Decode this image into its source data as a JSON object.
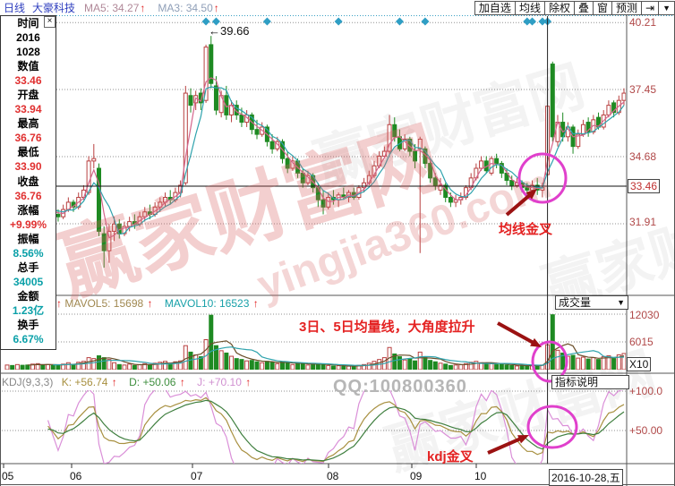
{
  "header": {
    "period_label": "日线",
    "stock_name": "大豪科技",
    "ma5_label": "MA5: 34.27",
    "ma3_label": "MA3: 34.50",
    "up_arrow": "↑",
    "buttons": [
      "加自选",
      "均线",
      "除权",
      "叠",
      "窗",
      "预测"
    ],
    "jump_icon": "⇥",
    "dropdown_icon": "▼"
  },
  "sidebar": {
    "close_icon": "×",
    "rows": [
      {
        "text": "时间",
        "cls": "sb-lab"
      },
      {
        "text": "2016",
        "cls": "sb-k"
      },
      {
        "text": "1028",
        "cls": "sb-k"
      },
      {
        "text": "数值",
        "cls": "sb-lab"
      },
      {
        "text": "33.46",
        "cls": "sb-r"
      },
      {
        "text": "开盘",
        "cls": "sb-lab"
      },
      {
        "text": "33.94",
        "cls": "sb-r"
      },
      {
        "text": "最高",
        "cls": "sb-lab"
      },
      {
        "text": "36.76",
        "cls": "sb-r"
      },
      {
        "text": "最低",
        "cls": "sb-lab"
      },
      {
        "text": "33.90",
        "cls": "sb-r"
      },
      {
        "text": "收盘",
        "cls": "sb-lab"
      },
      {
        "text": "36.76",
        "cls": "sb-r"
      },
      {
        "text": "涨幅",
        "cls": "sb-lab"
      },
      {
        "text": "+9.99%",
        "cls": "sb-r"
      },
      {
        "text": "振幅",
        "cls": "sb-lab"
      },
      {
        "text": "8.56%",
        "cls": "sb-c"
      },
      {
        "text": "总手",
        "cls": "sb-lab"
      },
      {
        "text": "34005",
        "cls": "sb-c"
      },
      {
        "text": "金额",
        "cls": "sb-lab"
      },
      {
        "text": "1.23亿",
        "cls": "sb-c"
      },
      {
        "text": "换手",
        "cls": "sb-lab"
      },
      {
        "text": "6.67%",
        "cls": "sb-c"
      }
    ]
  },
  "volume_header": {
    "lead_arrow": "↑",
    "mavol5": "MAVOL5: 15698",
    "mavol10": "MAVOL10: 16523"
  },
  "kdj_header": {
    "name": "KDJ(9,3,3)",
    "k": "K: +56.74",
    "d": "D: +50.06",
    "j": "J: +70.10"
  },
  "right_panel": {
    "volume_dropdown": "成交量",
    "dropdown_icon": "▼",
    "indicator_help": "指标说明",
    "unit": "X10",
    "date": "2016-10-28,五"
  },
  "axis": {
    "price": [
      "40.21",
      "37.45",
      "34.68",
      "31.91"
    ],
    "price_current": "33.46",
    "volume": [
      "12030",
      "6015"
    ],
    "kdj": [
      "+100.0",
      "+50.00"
    ],
    "months": [
      "05",
      "06",
      "07",
      "08",
      "09",
      "10"
    ]
  },
  "annotations": {
    "peak": "←39.66",
    "ma_cross": "均线金叉",
    "vol_note": "3日、5日均量线，大角度拉升",
    "kdj_cross": "kdj金叉",
    "qq": "QQ:100800360"
  },
  "watermark": {
    "brand": "赢家财富网",
    "site": "yingjia360.com"
  },
  "chart_data": {
    "type": "candlestick",
    "title": "大豪科技 日线",
    "panes": [
      "price",
      "volume",
      "kdj"
    ],
    "price_axis_ticks": [
      40.21,
      37.45,
      34.68,
      33.46,
      31.91
    ],
    "volume_axis_ticks": [
      12030,
      6015
    ],
    "kdj_axis_ticks": [
      100,
      50
    ],
    "x_axis": [
      "05",
      "06",
      "07",
      "08",
      "09",
      "10"
    ],
    "crosshair": {
      "index": 106,
      "price": 33.46,
      "date": "2016-10-28"
    },
    "event_indices": [
      39,
      41,
      51,
      65,
      77,
      82,
      102,
      103,
      105,
      106
    ],
    "candles": [
      [
        32.4,
        32.6,
        32.2,
        32.5,
        1000
      ],
      [
        32.5,
        32.7,
        32.2,
        32.3,
        900
      ],
      [
        32.3,
        32.7,
        32.2,
        32.6,
        1100
      ],
      [
        32.6,
        32.8,
        32.3,
        32.4,
        950
      ],
      [
        32.4,
        32.5,
        32.0,
        32.2,
        1000
      ],
      [
        32.2,
        32.6,
        32.1,
        32.5,
        1200
      ],
      [
        32.5,
        32.9,
        32.4,
        32.7,
        1300
      ],
      [
        32.7,
        32.8,
        32.3,
        32.4,
        1000
      ],
      [
        32.4,
        32.8,
        32.3,
        32.6,
        1100
      ],
      [
        32.6,
        32.7,
        32.1,
        32.3,
        900
      ],
      [
        32.3,
        32.5,
        32.0,
        32.2,
        1000
      ],
      [
        32.2,
        32.7,
        32.1,
        32.5,
        1200
      ],
      [
        32.5,
        33.0,
        32.4,
        32.8,
        1500
      ],
      [
        32.8,
        32.9,
        32.4,
        32.6,
        1100
      ],
      [
        32.6,
        33.2,
        32.5,
        33.0,
        1600
      ],
      [
        33.0,
        33.5,
        32.9,
        33.3,
        1800
      ],
      [
        33.2,
        34.7,
        33.1,
        34.5,
        2600
      ],
      [
        34.5,
        35.2,
        34.2,
        34.6,
        2400
      ],
      [
        34.2,
        34.4,
        31.4,
        31.6,
        3000
      ],
      [
        31.5,
        31.8,
        30.1,
        30.8,
        2600
      ],
      [
        30.8,
        31.9,
        30.3,
        31.6,
        2200
      ],
      [
        31.6,
        32.2,
        31.2,
        31.9,
        1500
      ],
      [
        31.9,
        32.1,
        31.3,
        31.5,
        1100
      ],
      [
        31.5,
        32.0,
        31.4,
        31.8,
        1000
      ],
      [
        31.8,
        32.2,
        31.6,
        32.0,
        1200
      ],
      [
        32.0,
        32.3,
        31.7,
        31.9,
        900
      ],
      [
        31.9,
        32.4,
        31.8,
        32.2,
        1100
      ],
      [
        32.2,
        32.6,
        32.0,
        32.4,
        1300
      ],
      [
        32.4,
        32.7,
        32.1,
        32.3,
        1000
      ],
      [
        32.3,
        32.8,
        32.2,
        32.6,
        1400
      ],
      [
        32.6,
        33.0,
        32.4,
        32.8,
        1600
      ],
      [
        32.8,
        33.2,
        32.6,
        33.0,
        1800
      ],
      [
        33.0,
        33.3,
        32.7,
        32.9,
        1300
      ],
      [
        32.9,
        33.4,
        32.8,
        33.2,
        1700
      ],
      [
        33.2,
        33.7,
        33.0,
        33.5,
        1900
      ],
      [
        33.6,
        37.6,
        33.5,
        37.3,
        5200
      ],
      [
        37.2,
        37.5,
        36.5,
        36.8,
        3800
      ],
      [
        36.9,
        37.4,
        36.6,
        37.2,
        3200
      ],
      [
        37.3,
        37.5,
        36.6,
        36.9,
        2800
      ],
      [
        37.0,
        39.3,
        36.9,
        39.2,
        6500
      ],
      [
        39.3,
        39.66,
        37.5,
        37.7,
        11800
      ],
      [
        37.6,
        38.0,
        36.4,
        36.6,
        5200
      ],
      [
        36.5,
        37.4,
        36.3,
        37.2,
        4100
      ],
      [
        37.2,
        37.6,
        36.2,
        36.4,
        3600
      ],
      [
        36.4,
        37.0,
        36.1,
        36.8,
        2900
      ],
      [
        36.8,
        37.0,
        36.2,
        36.4,
        2400
      ],
      [
        36.4,
        36.7,
        35.9,
        36.1,
        2200
      ],
      [
        36.1,
        36.6,
        35.9,
        36.4,
        1900
      ],
      [
        36.4,
        36.5,
        35.6,
        35.8,
        2000
      ],
      [
        35.8,
        36.2,
        35.4,
        35.6,
        1700
      ],
      [
        35.6,
        36.1,
        35.5,
        35.9,
        1500
      ],
      [
        35.9,
        36.0,
        35.1,
        35.3,
        1800
      ],
      [
        35.3,
        35.6,
        34.8,
        35.0,
        1600
      ],
      [
        35.0,
        35.5,
        34.9,
        35.3,
        1300
      ],
      [
        35.3,
        35.4,
        34.4,
        34.6,
        1700
      ],
      [
        34.6,
        34.9,
        34.0,
        34.2,
        1500
      ],
      [
        34.2,
        34.7,
        34.1,
        34.5,
        1100
      ],
      [
        34.5,
        34.6,
        33.8,
        34.0,
        1300
      ],
      [
        34.0,
        34.2,
        33.4,
        33.6,
        1400
      ],
      [
        33.6,
        34.1,
        33.5,
        33.9,
        1000
      ],
      [
        33.9,
        34.0,
        33.2,
        33.4,
        1200
      ],
      [
        33.4,
        33.6,
        32.6,
        32.9,
        1300
      ],
      [
        32.9,
        33.3,
        32.3,
        32.6,
        1100
      ],
      [
        32.6,
        33.2,
        32.5,
        33.0,
        900
      ],
      [
        33.0,
        33.3,
        32.7,
        32.9,
        800
      ],
      [
        32.9,
        33.2,
        32.6,
        33.1,
        850
      ],
      [
        33.1,
        33.4,
        32.9,
        33.0,
        700
      ],
      [
        33.0,
        33.3,
        32.8,
        33.2,
        750
      ],
      [
        33.2,
        33.4,
        32.9,
        33.0,
        800
      ],
      [
        33.0,
        33.5,
        32.9,
        33.4,
        950
      ],
      [
        33.4,
        33.8,
        33.2,
        33.6,
        1100
      ],
      [
        33.6,
        34.1,
        33.5,
        33.9,
        1400
      ],
      [
        33.9,
        34.5,
        33.8,
        34.3,
        1800
      ],
      [
        34.3,
        34.9,
        34.2,
        34.7,
        2200
      ],
      [
        34.7,
        35.1,
        34.6,
        34.9,
        2600
      ],
      [
        34.9,
        36.4,
        34.8,
        36.0,
        4800
      ],
      [
        36.0,
        36.3,
        35.3,
        35.5,
        3400
      ],
      [
        35.5,
        35.8,
        34.9,
        35.0,
        2800
      ],
      [
        35.0,
        35.6,
        34.9,
        35.4,
        2100
      ],
      [
        35.4,
        35.5,
        34.7,
        34.9,
        2300
      ],
      [
        34.9,
        35.2,
        34.2,
        34.5,
        1900
      ],
      [
        35.0,
        35.5,
        30.7,
        35.4,
        3800
      ],
      [
        35.0,
        35.1,
        34.2,
        34.4,
        2600
      ],
      [
        34.4,
        34.6,
        33.6,
        33.8,
        2000
      ],
      [
        33.8,
        34.0,
        33.3,
        33.5,
        1700
      ],
      [
        33.3,
        33.8,
        33.1,
        33.5,
        1400
      ],
      [
        33.5,
        33.6,
        32.8,
        33.0,
        1200
      ],
      [
        33.0,
        33.2,
        32.6,
        32.8,
        900
      ],
      [
        32.8,
        33.1,
        32.6,
        32.9,
        1000
      ],
      [
        32.9,
        33.2,
        32.7,
        33.0,
        1100
      ],
      [
        33.0,
        33.5,
        32.9,
        33.4,
        1300
      ],
      [
        33.4,
        34.0,
        33.3,
        33.8,
        1600
      ],
      [
        33.8,
        34.4,
        33.7,
        34.2,
        1800
      ],
      [
        34.2,
        34.7,
        34.1,
        34.5,
        1500
      ],
      [
        34.5,
        34.7,
        34.0,
        34.1,
        1400
      ],
      [
        34.0,
        34.7,
        33.9,
        34.6,
        1300
      ],
      [
        34.6,
        34.8,
        34.2,
        34.4,
        1100
      ],
      [
        34.4,
        34.5,
        33.8,
        34.0,
        1200
      ],
      [
        34.0,
        34.2,
        33.5,
        33.7,
        1000
      ],
      [
        33.7,
        33.9,
        33.3,
        33.5,
        900
      ],
      [
        33.5,
        33.8,
        33.4,
        33.6,
        800
      ],
      [
        33.6,
        33.7,
        33.2,
        33.4,
        850
      ],
      [
        33.4,
        33.6,
        33.1,
        33.3,
        800
      ],
      [
        33.3,
        33.7,
        33.2,
        33.5,
        900
      ],
      [
        33.5,
        33.8,
        33.1,
        33.3,
        950
      ],
      [
        33.3,
        33.6,
        33.0,
        33.4,
        1000
      ],
      [
        33.94,
        36.76,
        33.9,
        36.76,
        5400
      ],
      [
        38.5,
        38.6,
        35.3,
        35.5,
        11900
      ],
      [
        35.3,
        36.4,
        35.1,
        36.1,
        4200
      ],
      [
        36.1,
        36.5,
        35.3,
        35.5,
        3600
      ],
      [
        35.5,
        36.1,
        35.3,
        35.9,
        2900
      ],
      [
        35.9,
        36.0,
        34.8,
        35.1,
        3100
      ],
      [
        35.1,
        35.8,
        35.0,
        35.6,
        2500
      ],
      [
        35.6,
        36.2,
        35.5,
        36.0,
        2700
      ],
      [
        36.1,
        36.3,
        35.5,
        35.7,
        2300
      ],
      [
        35.7,
        36.4,
        35.6,
        36.2,
        2600
      ],
      [
        36.3,
        36.5,
        35.8,
        35.9,
        2200
      ],
      [
        35.9,
        36.6,
        35.8,
        36.4,
        2800
      ],
      [
        36.4,
        37.0,
        36.3,
        36.8,
        3000
      ],
      [
        36.9,
        37.0,
        36.3,
        36.5,
        2400
      ],
      [
        36.5,
        37.2,
        36.4,
        37.0,
        3200
      ],
      [
        37.0,
        37.5,
        36.8,
        37.3,
        3500
      ]
    ]
  }
}
